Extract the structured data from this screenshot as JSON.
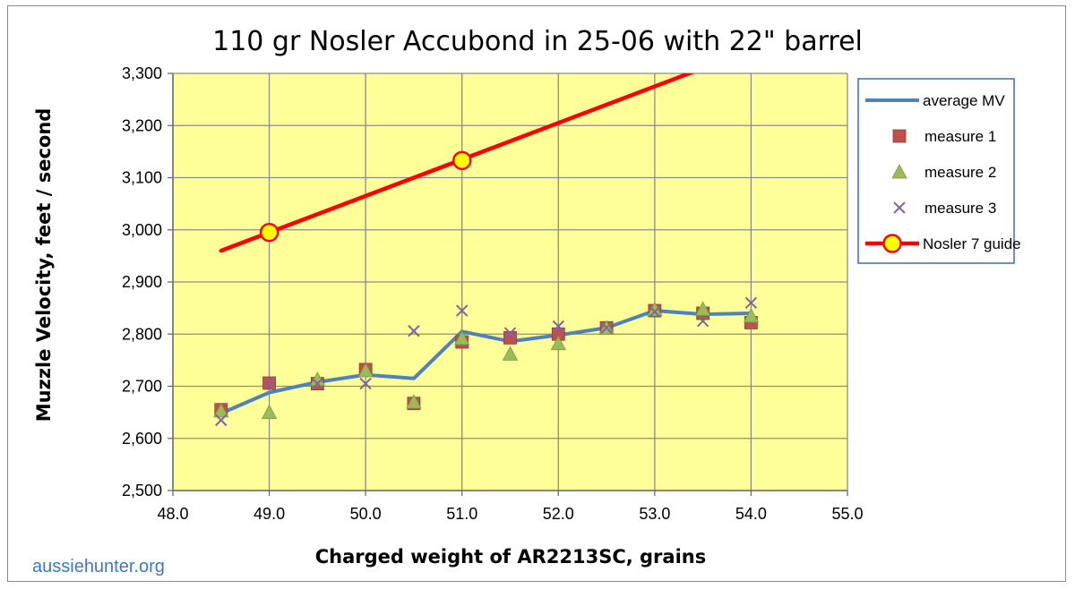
{
  "chart_data": {
    "type": "line",
    "title": "110 gr Nosler Accubond in 25-06 with 22\" barrel",
    "xlabel": "Charged weight of AR2213SC, grains",
    "ylabel": "Muzzle Velocity, feet / second",
    "xlim": [
      48.0,
      55.0
    ],
    "ylim": [
      2500,
      3300
    ],
    "x_ticks": [
      48.0,
      49.0,
      50.0,
      51.0,
      52.0,
      53.0,
      54.0,
      55.0
    ],
    "x_tick_labels": [
      "48.0",
      "49.0",
      "50.0",
      "51.0",
      "52.0",
      "53.0",
      "54.0",
      "55.0"
    ],
    "y_ticks": [
      2500,
      2600,
      2700,
      2800,
      2900,
      3000,
      3100,
      3200,
      3300
    ],
    "y_tick_labels": [
      "2,500",
      "2,600",
      "2,700",
      "2,800",
      "2,900",
      "3,000",
      "3,100",
      "3,200",
      "3,300"
    ],
    "grid": true,
    "legend_position": "right",
    "plot_background": "#ffff99",
    "series": [
      {
        "name": "average MV",
        "kind": "line",
        "color": "#4f81bd",
        "x": [
          48.5,
          49.0,
          49.5,
          50.0,
          50.5,
          51.0,
          51.5,
          52.0,
          52.5,
          53.0,
          53.5,
          54.0
        ],
        "y": [
          2648,
          2688,
          2708,
          2722,
          2715,
          2805,
          2786,
          2798,
          2812,
          2845,
          2838,
          2840
        ]
      },
      {
        "name": "measure 1",
        "kind": "square",
        "color": "#c0504d",
        "x": [
          48.5,
          49.0,
          49.5,
          50.0,
          50.5,
          51.0,
          51.5,
          52.0,
          52.5,
          53.0,
          53.5,
          54.0
        ],
        "y": [
          2655,
          2706,
          2705,
          2732,
          2667,
          2785,
          2793,
          2800,
          2812,
          2845,
          2840,
          2822
        ]
      },
      {
        "name": "measure 2",
        "kind": "triangle",
        "color": "#9bbb59",
        "x": [
          48.5,
          49.0,
          49.5,
          50.0,
          50.5,
          51.0,
          51.5,
          52.0,
          52.5,
          53.0,
          53.5,
          54.0
        ],
        "y": [
          2653,
          2650,
          2713,
          2730,
          2670,
          2792,
          2762,
          2782,
          2812,
          2847,
          2848,
          2835
        ]
      },
      {
        "name": "measure 3",
        "kind": "cross",
        "color": "#8064a2",
        "x": [
          48.5,
          49.0,
          49.5,
          50.0,
          50.5,
          51.0,
          51.5,
          52.0,
          52.5,
          53.0,
          53.5,
          54.0
        ],
        "y": [
          2635,
          2705,
          2705,
          2705,
          2806,
          2845,
          2802,
          2815,
          2812,
          2843,
          2825,
          2860
        ]
      },
      {
        "name": "Nosler 7 guide",
        "kind": "trend-line-with-markers",
        "color": "#ff0000",
        "marker_fill": "#ffff00",
        "line_x": [
          48.5,
          53.5
        ],
        "line_y": [
          2960,
          3310
        ],
        "x": [
          49.0,
          51.0
        ],
        "y": [
          2995,
          3133
        ]
      }
    ]
  },
  "watermark": "aussiehunter.org"
}
